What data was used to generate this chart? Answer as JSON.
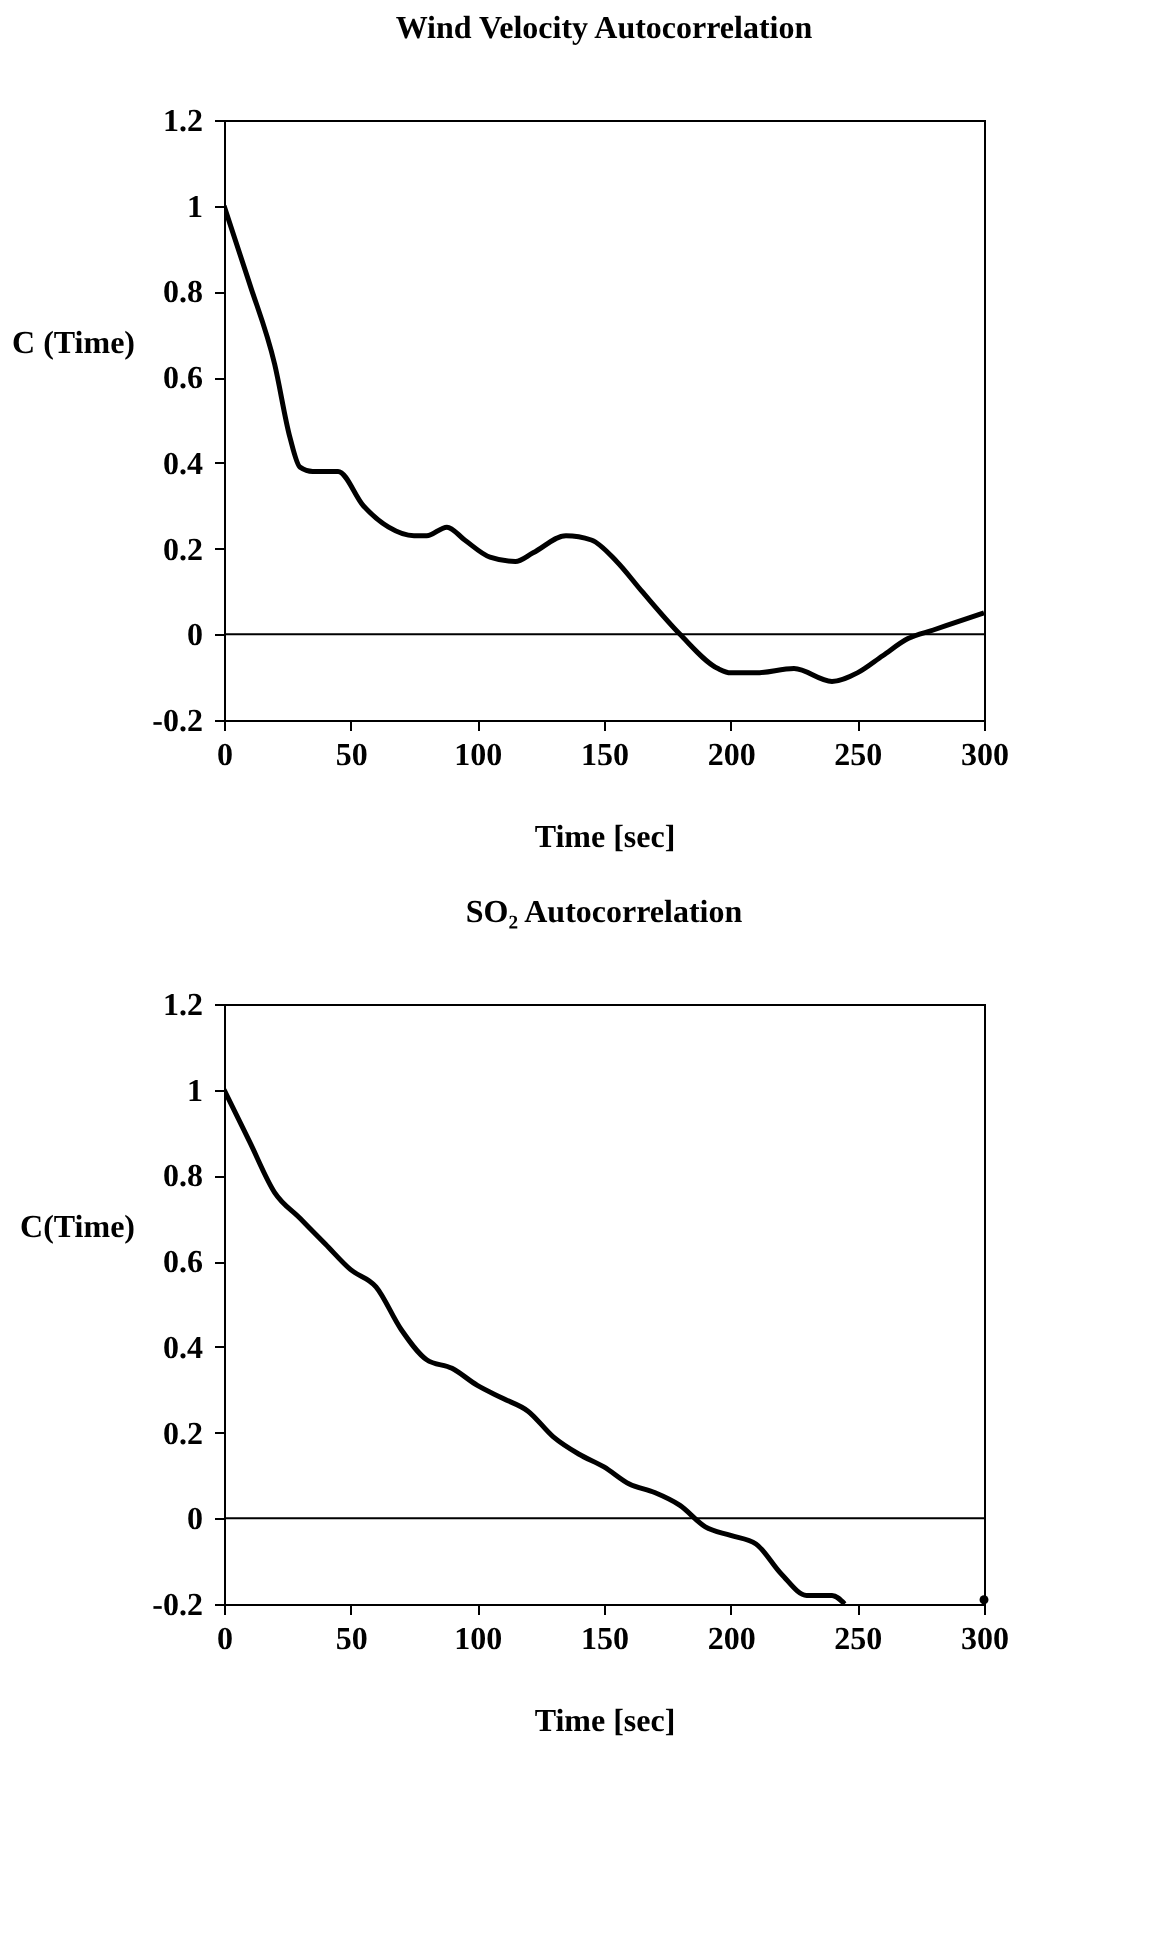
{
  "chart_data": [
    {
      "type": "line",
      "title": "Wind Velocity Autocorrelation",
      "xlabel": "Time [sec]",
      "ylabel": "C (Time)",
      "x": [
        0,
        10,
        20,
        26,
        30,
        35,
        45,
        55,
        65,
        75,
        80,
        88,
        95,
        105,
        115,
        122,
        135,
        145,
        155,
        165,
        180,
        195,
        200,
        210,
        225,
        240,
        250,
        260,
        270,
        280,
        290,
        300
      ],
      "ref_lines": [
        {
          "axis": "y",
          "value": 0,
          "color": "#000000"
        }
      ],
      "series": [
        {
          "color": "#000000",
          "values": [
            1.0,
            0.82,
            0.63,
            0.46,
            0.39,
            0.38,
            0.38,
            0.3,
            0.25,
            0.23,
            0.23,
            0.25,
            0.22,
            0.18,
            0.17,
            0.19,
            0.23,
            0.22,
            0.17,
            0.1,
            0.0,
            -0.08,
            -0.09,
            -0.09,
            -0.08,
            -0.11,
            -0.09,
            -0.05,
            -0.01,
            0.01,
            0.03,
            0.05
          ]
        }
      ],
      "xlim": [
        0,
        300
      ],
      "xticks": [
        0,
        50,
        100,
        150,
        200,
        250,
        300
      ],
      "ylim": [
        -0.2,
        1.2
      ],
      "yticks": [
        -0.2,
        0,
        0.2,
        0.4,
        0.6,
        0.8,
        1,
        1.2
      ],
      "line_style": "solid"
    },
    {
      "type": "line",
      "title": "SO₂ Autocorrelation",
      "xlabel": "Time [sec]",
      "ylabel": "C(Time)",
      "x": [
        0,
        10,
        20,
        30,
        40,
        50,
        60,
        70,
        80,
        90,
        100,
        110,
        120,
        130,
        140,
        150,
        160,
        170,
        180,
        190,
        200,
        210,
        220,
        230,
        240,
        245,
        250,
        260,
        270,
        280,
        290,
        300
      ],
      "series": [
        {
          "color": "#000000",
          "values": [
            1.0,
            0.88,
            0.76,
            0.7,
            0.64,
            0.58,
            0.54,
            0.44,
            0.37,
            0.35,
            0.31,
            0.28,
            0.25,
            0.19,
            0.15,
            0.12,
            0.08,
            0.06,
            0.03,
            -0.02,
            -0.04,
            -0.06,
            -0.13,
            -0.18,
            -0.18,
            -0.2,
            null,
            null,
            null,
            null,
            null,
            -0.19
          ]
        }
      ],
      "ref_lines": [
        {
          "axis": "y",
          "value": 0,
          "color": "#000000"
        }
      ],
      "xlim": [
        0,
        300
      ],
      "xticks": [
        0,
        50,
        100,
        150,
        200,
        250,
        300
      ],
      "ylim": [
        -0.2,
        1.2
      ],
      "yticks": [
        -0.2,
        0,
        0.2,
        0.4,
        0.6,
        0.8,
        1,
        1.2
      ],
      "line_style": "solid"
    }
  ]
}
